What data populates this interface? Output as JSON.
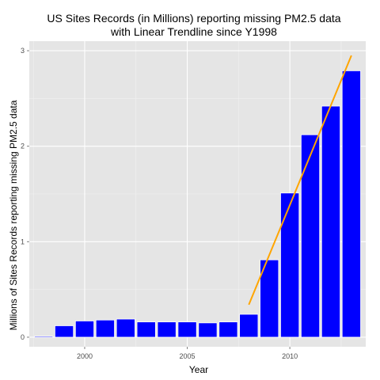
{
  "chart_data": {
    "type": "bar",
    "title_lines": [
      "US Sites Records (in Millions) reporting missing PM2.5 data",
      "with Linear Trendline since Y1998"
    ],
    "xlabel": "Year",
    "ylabel": "Millions of Sites Records reporting missing PM2.5 data",
    "x": [
      1998,
      1999,
      2000,
      2001,
      2002,
      2003,
      2004,
      2005,
      2006,
      2007,
      2008,
      2009,
      2010,
      2011,
      2012,
      2013
    ],
    "values": [
      0.01,
      0.12,
      0.17,
      0.18,
      0.19,
      0.16,
      0.16,
      0.16,
      0.15,
      0.16,
      0.24,
      0.81,
      1.51,
      2.12,
      2.42,
      2.79
    ],
    "xticks": [
      2000,
      2005,
      2010
    ],
    "yticks": [
      0,
      1,
      2,
      3
    ],
    "xlim": [
      1997.3,
      2013.7
    ],
    "ylim": [
      -0.1,
      3.1
    ],
    "grid": true,
    "colors": {
      "bar": "#0000ff",
      "bar_outline": "#ffffff",
      "trend": "#ffa500",
      "panel": "#e5e5e5",
      "grid_major": "#ffffff",
      "grid_minor": "#f2f2f2"
    },
    "trendline": {
      "x_start": 2008,
      "x_end": 2013,
      "y_start": 0.34,
      "y_end": 2.95
    }
  }
}
